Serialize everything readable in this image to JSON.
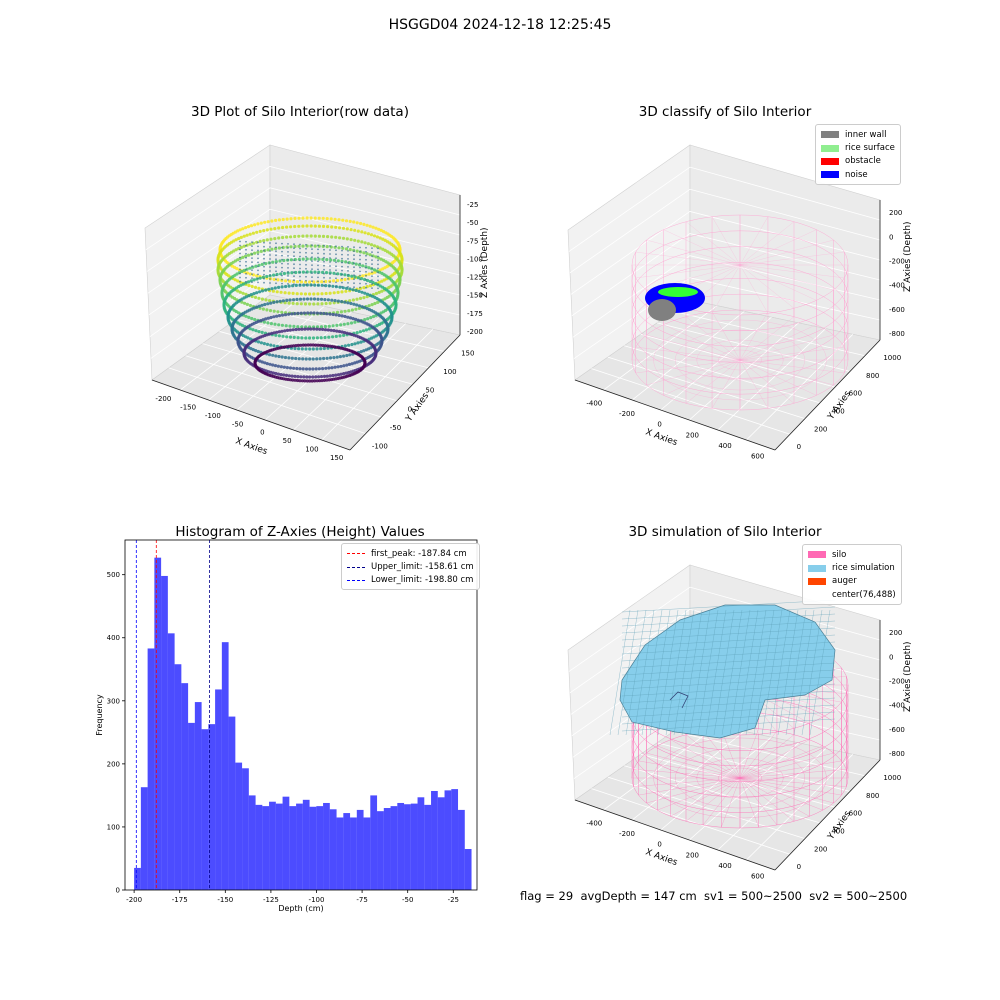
{
  "suptitle": "HSGGD04 2024-12-18 12:25:45",
  "footer": "flag = 29  avgDepth = 147 cm  sv1 = 500~2500  sv2 = 500~2500",
  "panels": {
    "raw": {
      "title": "3D Plot of Silo Interior(row data)",
      "x_label": "X Axies",
      "y_label": "Y Axies",
      "z_label": "Z Axies (Depth)",
      "x_ticks": [
        "-200",
        "-150",
        "-100",
        "-50",
        "0",
        "50",
        "100",
        "150"
      ],
      "y_ticks": [
        "-100",
        "-50",
        "0",
        "50",
        "100",
        "150"
      ],
      "z_ticks": [
        "-25",
        "-50",
        "-75",
        "-100",
        "-125",
        "-150",
        "-175",
        "-200"
      ]
    },
    "classify": {
      "title": "3D classify of Silo Interior",
      "x_label": "X Axies",
      "y_label": "Y Axies",
      "z_label": "Z Axies (Depth)",
      "x_ticks": [
        "-400",
        "-200",
        "0",
        "200",
        "400",
        "600"
      ],
      "y_ticks": [
        "0",
        "200",
        "400",
        "600",
        "800",
        "1000"
      ],
      "z_ticks": [
        "200",
        "0",
        "-200",
        "-400",
        "-600",
        "-800"
      ],
      "legend": [
        {
          "label": "inner wall",
          "color": "#808080"
        },
        {
          "label": "rice surface",
          "color": "#90ee90"
        },
        {
          "label": "obstacle",
          "color": "#ff0000"
        },
        {
          "label": "noise",
          "color": "#0000ff"
        }
      ]
    },
    "simulation": {
      "title": "3D simulation of Silo Interior",
      "x_label": "X Axies",
      "y_label": "Y Axies",
      "z_label": "Z Axies (Depth)",
      "x_ticks": [
        "-400",
        "-200",
        "0",
        "200",
        "400",
        "600"
      ],
      "y_ticks": [
        "0",
        "200",
        "400",
        "600",
        "800",
        "1000"
      ],
      "z_ticks": [
        "200",
        "0",
        "-200",
        "-400",
        "-600",
        "-800"
      ],
      "legend": [
        {
          "label": "silo",
          "color": "#ff69b4"
        },
        {
          "label": "rice simulation",
          "color": "#87ceeb"
        },
        {
          "label": "auger",
          "color": "#ff4500"
        },
        {
          "label": "center(76,488)",
          "color": ""
        }
      ]
    }
  },
  "chart_data": {
    "type": "bar",
    "title": "Histogram of Z-Axies (Height) Values",
    "xlabel": "Depth (cm)",
    "ylabel": "Frequency",
    "xlim": [
      -205,
      -12
    ],
    "ylim": [
      0,
      555
    ],
    "x_ticks": [
      -200,
      -175,
      -150,
      -125,
      -100,
      -75,
      -50,
      -25
    ],
    "y_ticks": [
      0,
      100,
      200,
      300,
      400,
      500
    ],
    "bin_start": -200,
    "bin_width": 3.7,
    "values": [
      35,
      163,
      383,
      527,
      498,
      407,
      358,
      328,
      265,
      298,
      255,
      263,
      318,
      393,
      275,
      202,
      193,
      150,
      135,
      133,
      140,
      137,
      148,
      133,
      137,
      143,
      132,
      133,
      138,
      128,
      115,
      122,
      115,
      127,
      115,
      150,
      125,
      130,
      133,
      138,
      136,
      137,
      147,
      135,
      157,
      147,
      158,
      160,
      127,
      65
    ],
    "color": "#0000ff",
    "vlines": [
      {
        "label": "first_peak: -187.84 cm",
        "x": -187.84,
        "color": "#ff0000"
      },
      {
        "label": "Upper_limit: -158.61 cm",
        "x": -158.61,
        "color": "#00008b"
      },
      {
        "label": "Lower_limit: -198.80 cm",
        "x": -198.8,
        "color": "#0000ff"
      }
    ]
  }
}
